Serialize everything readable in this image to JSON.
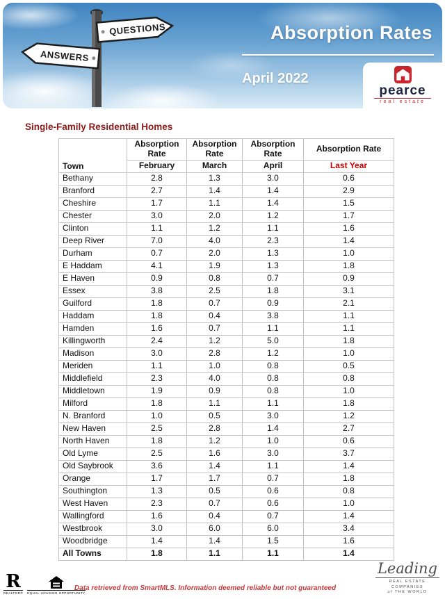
{
  "header": {
    "title": "Absorption Rates",
    "subtitle": "April 2022",
    "sign_questions": "QUESTIONS",
    "sign_answers": "ANSWERS",
    "logo": {
      "name": "pearce",
      "sub": "real estate"
    },
    "accent_color": "#c9252c",
    "sky_color": "#3f84c0"
  },
  "section_title": "Single-Family Residential Homes",
  "table": {
    "header": {
      "town_label": "Town",
      "rate_label": "Absorption Rate",
      "periods": [
        "February",
        "March",
        "April",
        "Last Year"
      ],
      "last_year_color": "#cc0000"
    },
    "rows": [
      {
        "town": "Bethany",
        "values": [
          "2.8",
          "1.3",
          "3.0",
          "0.6"
        ]
      },
      {
        "town": "Branford",
        "values": [
          "2.7",
          "1.4",
          "1.4",
          "2.9"
        ]
      },
      {
        "town": "Cheshire",
        "values": [
          "1.7",
          "1.1",
          "1.4",
          "1.5"
        ]
      },
      {
        "town": "Chester",
        "values": [
          "3.0",
          "2.0",
          "1.2",
          "1.7"
        ]
      },
      {
        "town": "Clinton",
        "values": [
          "1.1",
          "1.2",
          "1.1",
          "1.6"
        ]
      },
      {
        "town": "Deep River",
        "values": [
          "7.0",
          "4.0",
          "2.3",
          "1.4"
        ]
      },
      {
        "town": "Durham",
        "values": [
          "0.7",
          "2.0",
          "1.3",
          "1.0"
        ]
      },
      {
        "town": "E Haddam",
        "values": [
          "4.1",
          "1.9",
          "1.3",
          "1.8"
        ]
      },
      {
        "town": "E Haven",
        "values": [
          "0.9",
          "0.8",
          "0.7",
          "0.9"
        ]
      },
      {
        "town": "Essex",
        "values": [
          "3.8",
          "2.5",
          "1.8",
          "3.1"
        ]
      },
      {
        "town": "Guilford",
        "values": [
          "1.8",
          "0.7",
          "0.9",
          "2.1"
        ]
      },
      {
        "town": "Haddam",
        "values": [
          "1.8",
          "0.4",
          "3.8",
          "1.1"
        ]
      },
      {
        "town": "Hamden",
        "values": [
          "1.6",
          "0.7",
          "1.1",
          "1.1"
        ]
      },
      {
        "town": "Killingworth",
        "values": [
          "2.4",
          "1.2",
          "5.0",
          "1.8"
        ]
      },
      {
        "town": "Madison",
        "values": [
          "3.0",
          "2.8",
          "1.2",
          "1.0"
        ]
      },
      {
        "town": "Meriden",
        "values": [
          "1.1",
          "1.0",
          "0.8",
          "0.5"
        ]
      },
      {
        "town": "Middlefield",
        "values": [
          "2.3",
          "4.0",
          "0.8",
          "0.8"
        ]
      },
      {
        "town": "Middletown",
        "values": [
          "1.9",
          "0.9",
          "0.8",
          "1.0"
        ]
      },
      {
        "town": "Milford",
        "values": [
          "1.8",
          "1.1",
          "1.1",
          "1.8"
        ]
      },
      {
        "town": "N. Branford",
        "values": [
          "1.0",
          "0.5",
          "3.0",
          "1.2"
        ]
      },
      {
        "town": "New Haven",
        "values": [
          "2.5",
          "2.8",
          "1.4",
          "2.7"
        ]
      },
      {
        "town": "North Haven",
        "values": [
          "1.8",
          "1.2",
          "1.0",
          "0.6"
        ]
      },
      {
        "town": "Old Lyme",
        "values": [
          "2.5",
          "1.6",
          "3.0",
          "3.7"
        ]
      },
      {
        "town": "Old Saybrook",
        "values": [
          "3.6",
          "1.4",
          "1.1",
          "1.4"
        ]
      },
      {
        "town": "Orange",
        "values": [
          "1.7",
          "1.7",
          "0.7",
          "1.8"
        ]
      },
      {
        "town": "Southington",
        "values": [
          "1.3",
          "0.5",
          "0.6",
          "0.8"
        ]
      },
      {
        "town": "West Haven",
        "values": [
          "2.3",
          "0.7",
          "0.6",
          "1.0"
        ]
      },
      {
        "town": "Wallingford",
        "values": [
          "1.6",
          "0.4",
          "0.7",
          "1.4"
        ]
      },
      {
        "town": "Westbrook",
        "values": [
          "3.0",
          "6.0",
          "6.0",
          "3.4"
        ]
      },
      {
        "town": "Woodbridge",
        "values": [
          "1.4",
          "1.4",
          "1.5",
          "1.6"
        ]
      }
    ],
    "total": {
      "town": "All Towns",
      "values": [
        "1.8",
        "1.1",
        "1.1",
        "1.4"
      ]
    }
  },
  "footer": {
    "realtor_label": "REALTOR®",
    "equal_housing_label": "EQUAL HOUSING OPPORTUNITY",
    "disclaimer": "Data retrieved from SmartMLS. Information deemed reliable but not guaranteed",
    "leading": {
      "script": "Leading",
      "line1": "REAL ESTATE",
      "line2": "COMPANIES",
      "line3": "of THE WORLD"
    }
  }
}
